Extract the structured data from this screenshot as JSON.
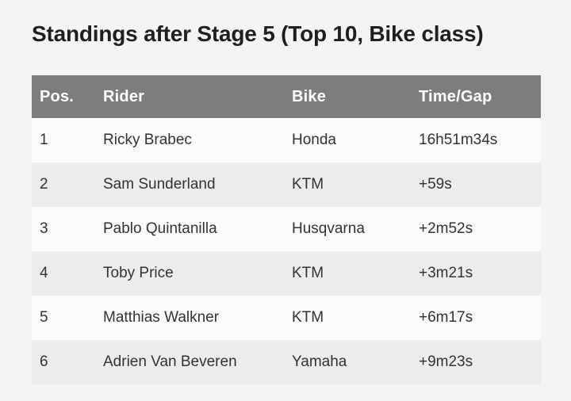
{
  "page": {
    "title": "Standings after Stage 5 (Top 10, Bike class)"
  },
  "colors": {
    "page_background": "#f4f4f5",
    "header_row_background": "#7d7d7d",
    "header_row_text": "#ffffff",
    "stripe_row_background": "#ececec",
    "plain_row_background": "#fbfbfb",
    "body_text": "#333333",
    "title_text": "#1f1f1f"
  },
  "table": {
    "columns": {
      "pos": "Pos.",
      "rider": "Rider",
      "bike": "Bike",
      "time": "Time/Gap"
    },
    "rows": [
      {
        "pos": "1",
        "rider": "Ricky Brabec",
        "bike": "Honda",
        "time": "16h51m34s"
      },
      {
        "pos": "2",
        "rider": "Sam Sunderland",
        "bike": "KTM",
        "time": "+59s"
      },
      {
        "pos": "3",
        "rider": "Pablo Quintanilla",
        "bike": "Husqvarna",
        "time": "+2m52s"
      },
      {
        "pos": "4",
        "rider": "Toby Price",
        "bike": "KTM",
        "time": "+3m21s"
      },
      {
        "pos": "5",
        "rider": "Matthias Walkner",
        "bike": "KTM",
        "time": "+6m17s"
      },
      {
        "pos": "6",
        "rider": "Adrien Van Beveren",
        "bike": "Yamaha",
        "time": "+9m23s"
      }
    ]
  }
}
